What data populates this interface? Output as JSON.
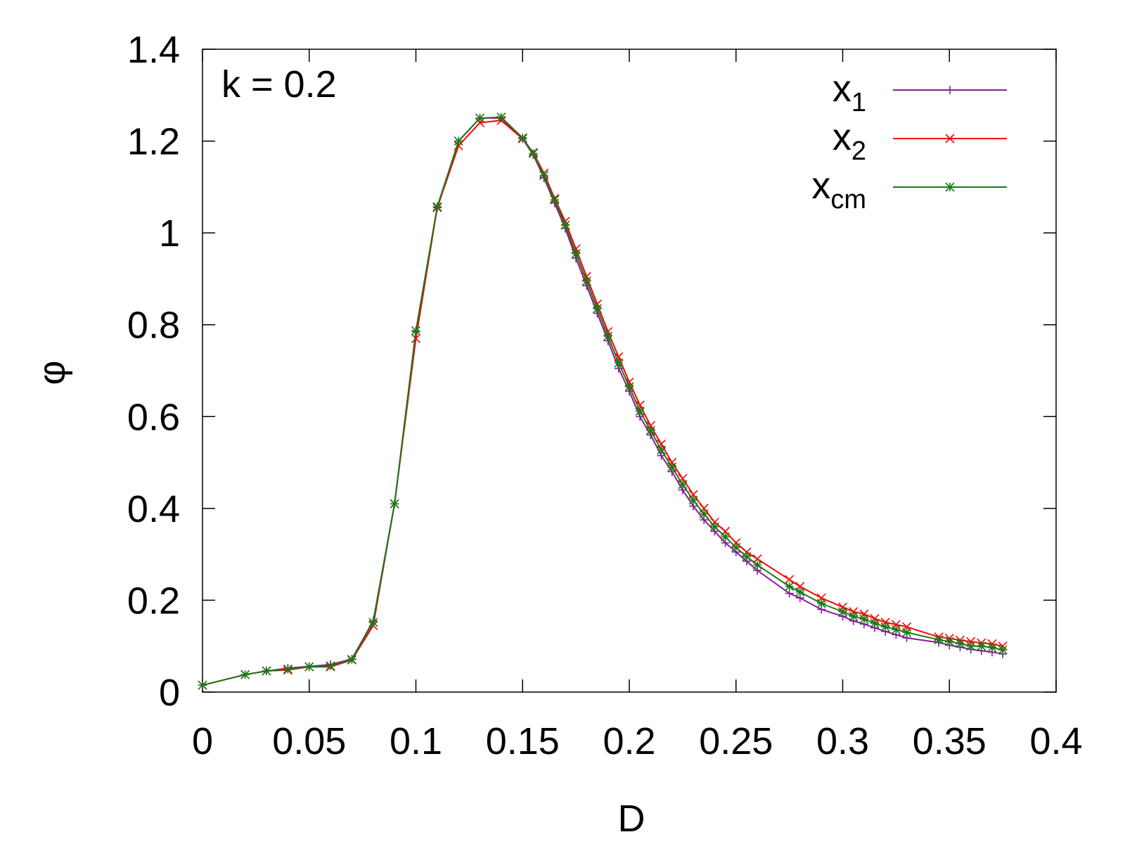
{
  "chart_data": {
    "type": "line",
    "annotation": "k = 0.2",
    "xlabel": "D",
    "ylabel": "φ",
    "xlim": [
      0,
      0.4
    ],
    "ylim": [
      0,
      1.4
    ],
    "xticks": [
      "0",
      "0.05",
      "0.1",
      "0.15",
      "0.2",
      "0.25",
      "0.3",
      "0.35",
      "0.4"
    ],
    "yticks": [
      "0",
      "0.2",
      "0.4",
      "0.6",
      "0.8",
      "1",
      "1.2",
      "1.4"
    ],
    "grid": false,
    "legend_position": "top-right",
    "series": [
      {
        "name": "x1",
        "name_base": "x",
        "name_sub": "1",
        "color": "#8B1A9B",
        "marker": "plus",
        "x": [
          0,
          0.02,
          0.03,
          0.04,
          0.05,
          0.06,
          0.07,
          0.08,
          0.09,
          0.1,
          0.11,
          0.12,
          0.13,
          0.14,
          0.15,
          0.155,
          0.16,
          0.165,
          0.17,
          0.175,
          0.18,
          0.185,
          0.19,
          0.195,
          0.2,
          0.205,
          0.21,
          0.215,
          0.22,
          0.225,
          0.23,
          0.235,
          0.24,
          0.245,
          0.25,
          0.255,
          0.26,
          0.275,
          0.28,
          0.29,
          0.3,
          0.305,
          0.31,
          0.315,
          0.32,
          0.325,
          0.33,
          0.345,
          0.35,
          0.355,
          0.36,
          0.365,
          0.37,
          0.375
        ],
        "y": [
          0.015,
          0.038,
          0.046,
          0.052,
          0.056,
          0.06,
          0.072,
          0.155,
          0.41,
          0.785,
          1.055,
          1.2,
          1.25,
          1.25,
          1.205,
          1.17,
          1.12,
          1.065,
          1.01,
          0.945,
          0.885,
          0.825,
          0.765,
          0.705,
          0.655,
          0.6,
          0.56,
          0.515,
          0.48,
          0.44,
          0.405,
          0.375,
          0.35,
          0.325,
          0.305,
          0.285,
          0.265,
          0.215,
          0.205,
          0.18,
          0.165,
          0.155,
          0.148,
          0.14,
          0.132,
          0.125,
          0.118,
          0.108,
          0.102,
          0.098,
          0.093,
          0.09,
          0.087,
          0.083
        ]
      },
      {
        "name": "x2",
        "name_base": "x",
        "name_sub": "2",
        "color": "#FF0000",
        "marker": "cross",
        "x": [
          0,
          0.02,
          0.03,
          0.04,
          0.05,
          0.06,
          0.07,
          0.08,
          0.09,
          0.1,
          0.11,
          0.12,
          0.13,
          0.14,
          0.15,
          0.155,
          0.16,
          0.165,
          0.17,
          0.175,
          0.18,
          0.185,
          0.19,
          0.195,
          0.2,
          0.205,
          0.21,
          0.215,
          0.22,
          0.225,
          0.23,
          0.235,
          0.24,
          0.245,
          0.25,
          0.255,
          0.26,
          0.275,
          0.28,
          0.29,
          0.3,
          0.305,
          0.31,
          0.315,
          0.32,
          0.325,
          0.33,
          0.345,
          0.35,
          0.355,
          0.36,
          0.365,
          0.37,
          0.375
        ],
        "y": [
          0.015,
          0.038,
          0.046,
          0.048,
          0.055,
          0.055,
          0.07,
          0.145,
          0.41,
          0.77,
          1.055,
          1.19,
          1.24,
          1.245,
          1.205,
          1.175,
          1.13,
          1.075,
          1.025,
          0.965,
          0.905,
          0.845,
          0.785,
          0.73,
          0.675,
          0.625,
          0.58,
          0.54,
          0.5,
          0.465,
          0.43,
          0.4,
          0.37,
          0.35,
          0.325,
          0.305,
          0.29,
          0.245,
          0.23,
          0.205,
          0.185,
          0.175,
          0.17,
          0.16,
          0.152,
          0.147,
          0.142,
          0.12,
          0.117,
          0.113,
          0.11,
          0.107,
          0.105,
          0.1
        ]
      },
      {
        "name": "xcm",
        "name_base": "x",
        "name_sub": "cm",
        "color": "#1A7A1A",
        "marker": "star",
        "x": [
          0,
          0.02,
          0.03,
          0.04,
          0.05,
          0.06,
          0.07,
          0.08,
          0.09,
          0.1,
          0.11,
          0.12,
          0.13,
          0.14,
          0.15,
          0.155,
          0.16,
          0.165,
          0.17,
          0.175,
          0.18,
          0.185,
          0.19,
          0.195,
          0.2,
          0.205,
          0.21,
          0.215,
          0.22,
          0.225,
          0.23,
          0.235,
          0.24,
          0.245,
          0.25,
          0.255,
          0.26,
          0.275,
          0.28,
          0.29,
          0.3,
          0.305,
          0.31,
          0.315,
          0.32,
          0.325,
          0.33,
          0.345,
          0.35,
          0.355,
          0.36,
          0.365,
          0.37,
          0.375
        ],
        "y": [
          0.015,
          0.038,
          0.046,
          0.05,
          0.055,
          0.057,
          0.071,
          0.152,
          0.41,
          0.787,
          1.057,
          1.2,
          1.25,
          1.252,
          1.207,
          1.173,
          1.125,
          1.072,
          1.017,
          0.955,
          0.895,
          0.835,
          0.775,
          0.717,
          0.665,
          0.612,
          0.57,
          0.527,
          0.49,
          0.452,
          0.418,
          0.388,
          0.36,
          0.338,
          0.315,
          0.295,
          0.277,
          0.23,
          0.218,
          0.193,
          0.175,
          0.165,
          0.159,
          0.15,
          0.142,
          0.136,
          0.13,
          0.114,
          0.11,
          0.106,
          0.1,
          0.1,
          0.097,
          0.092
        ]
      }
    ]
  }
}
